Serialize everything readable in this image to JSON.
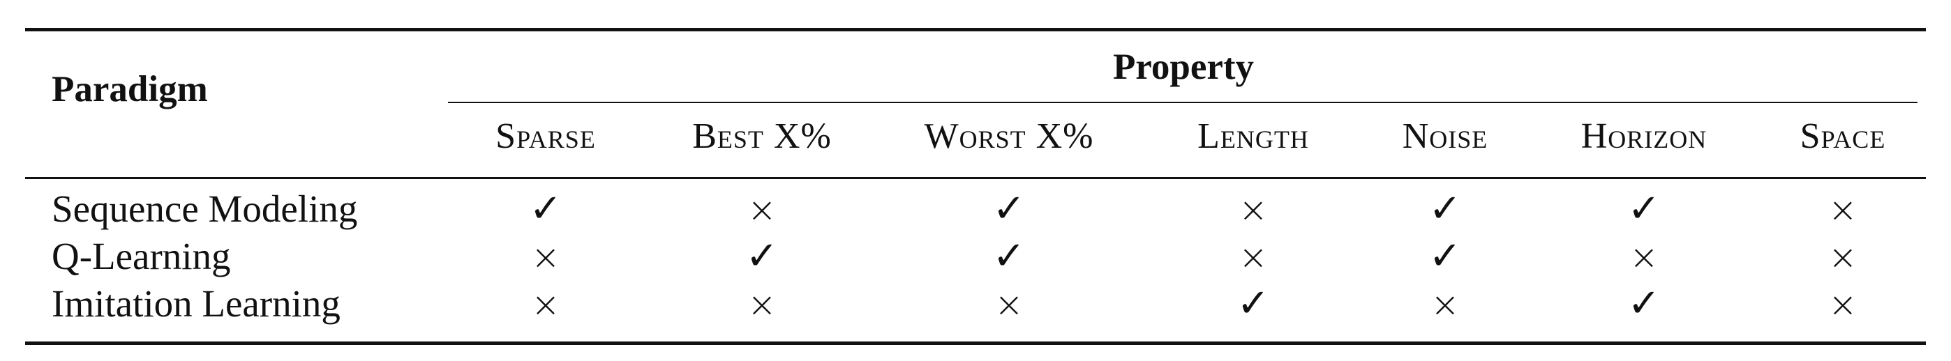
{
  "table": {
    "header": {
      "paradigm": "Paradigm",
      "property": "Property",
      "columns": [
        "Sparse",
        "Best X%",
        "Worst X%",
        "Length",
        "Noise",
        "Horizon",
        "Space"
      ]
    },
    "rows": [
      {
        "label": "Sequence Modeling",
        "marks": [
          "✓",
          "×",
          "✓",
          "×",
          "✓",
          "✓",
          "×"
        ]
      },
      {
        "label": "Q-Learning",
        "marks": [
          "×",
          "✓",
          "✓",
          "×",
          "✓",
          "×",
          "×"
        ]
      },
      {
        "label": "Imitation Learning",
        "marks": [
          "×",
          "×",
          "×",
          "✓",
          "×",
          "✓",
          "×"
        ]
      }
    ]
  }
}
